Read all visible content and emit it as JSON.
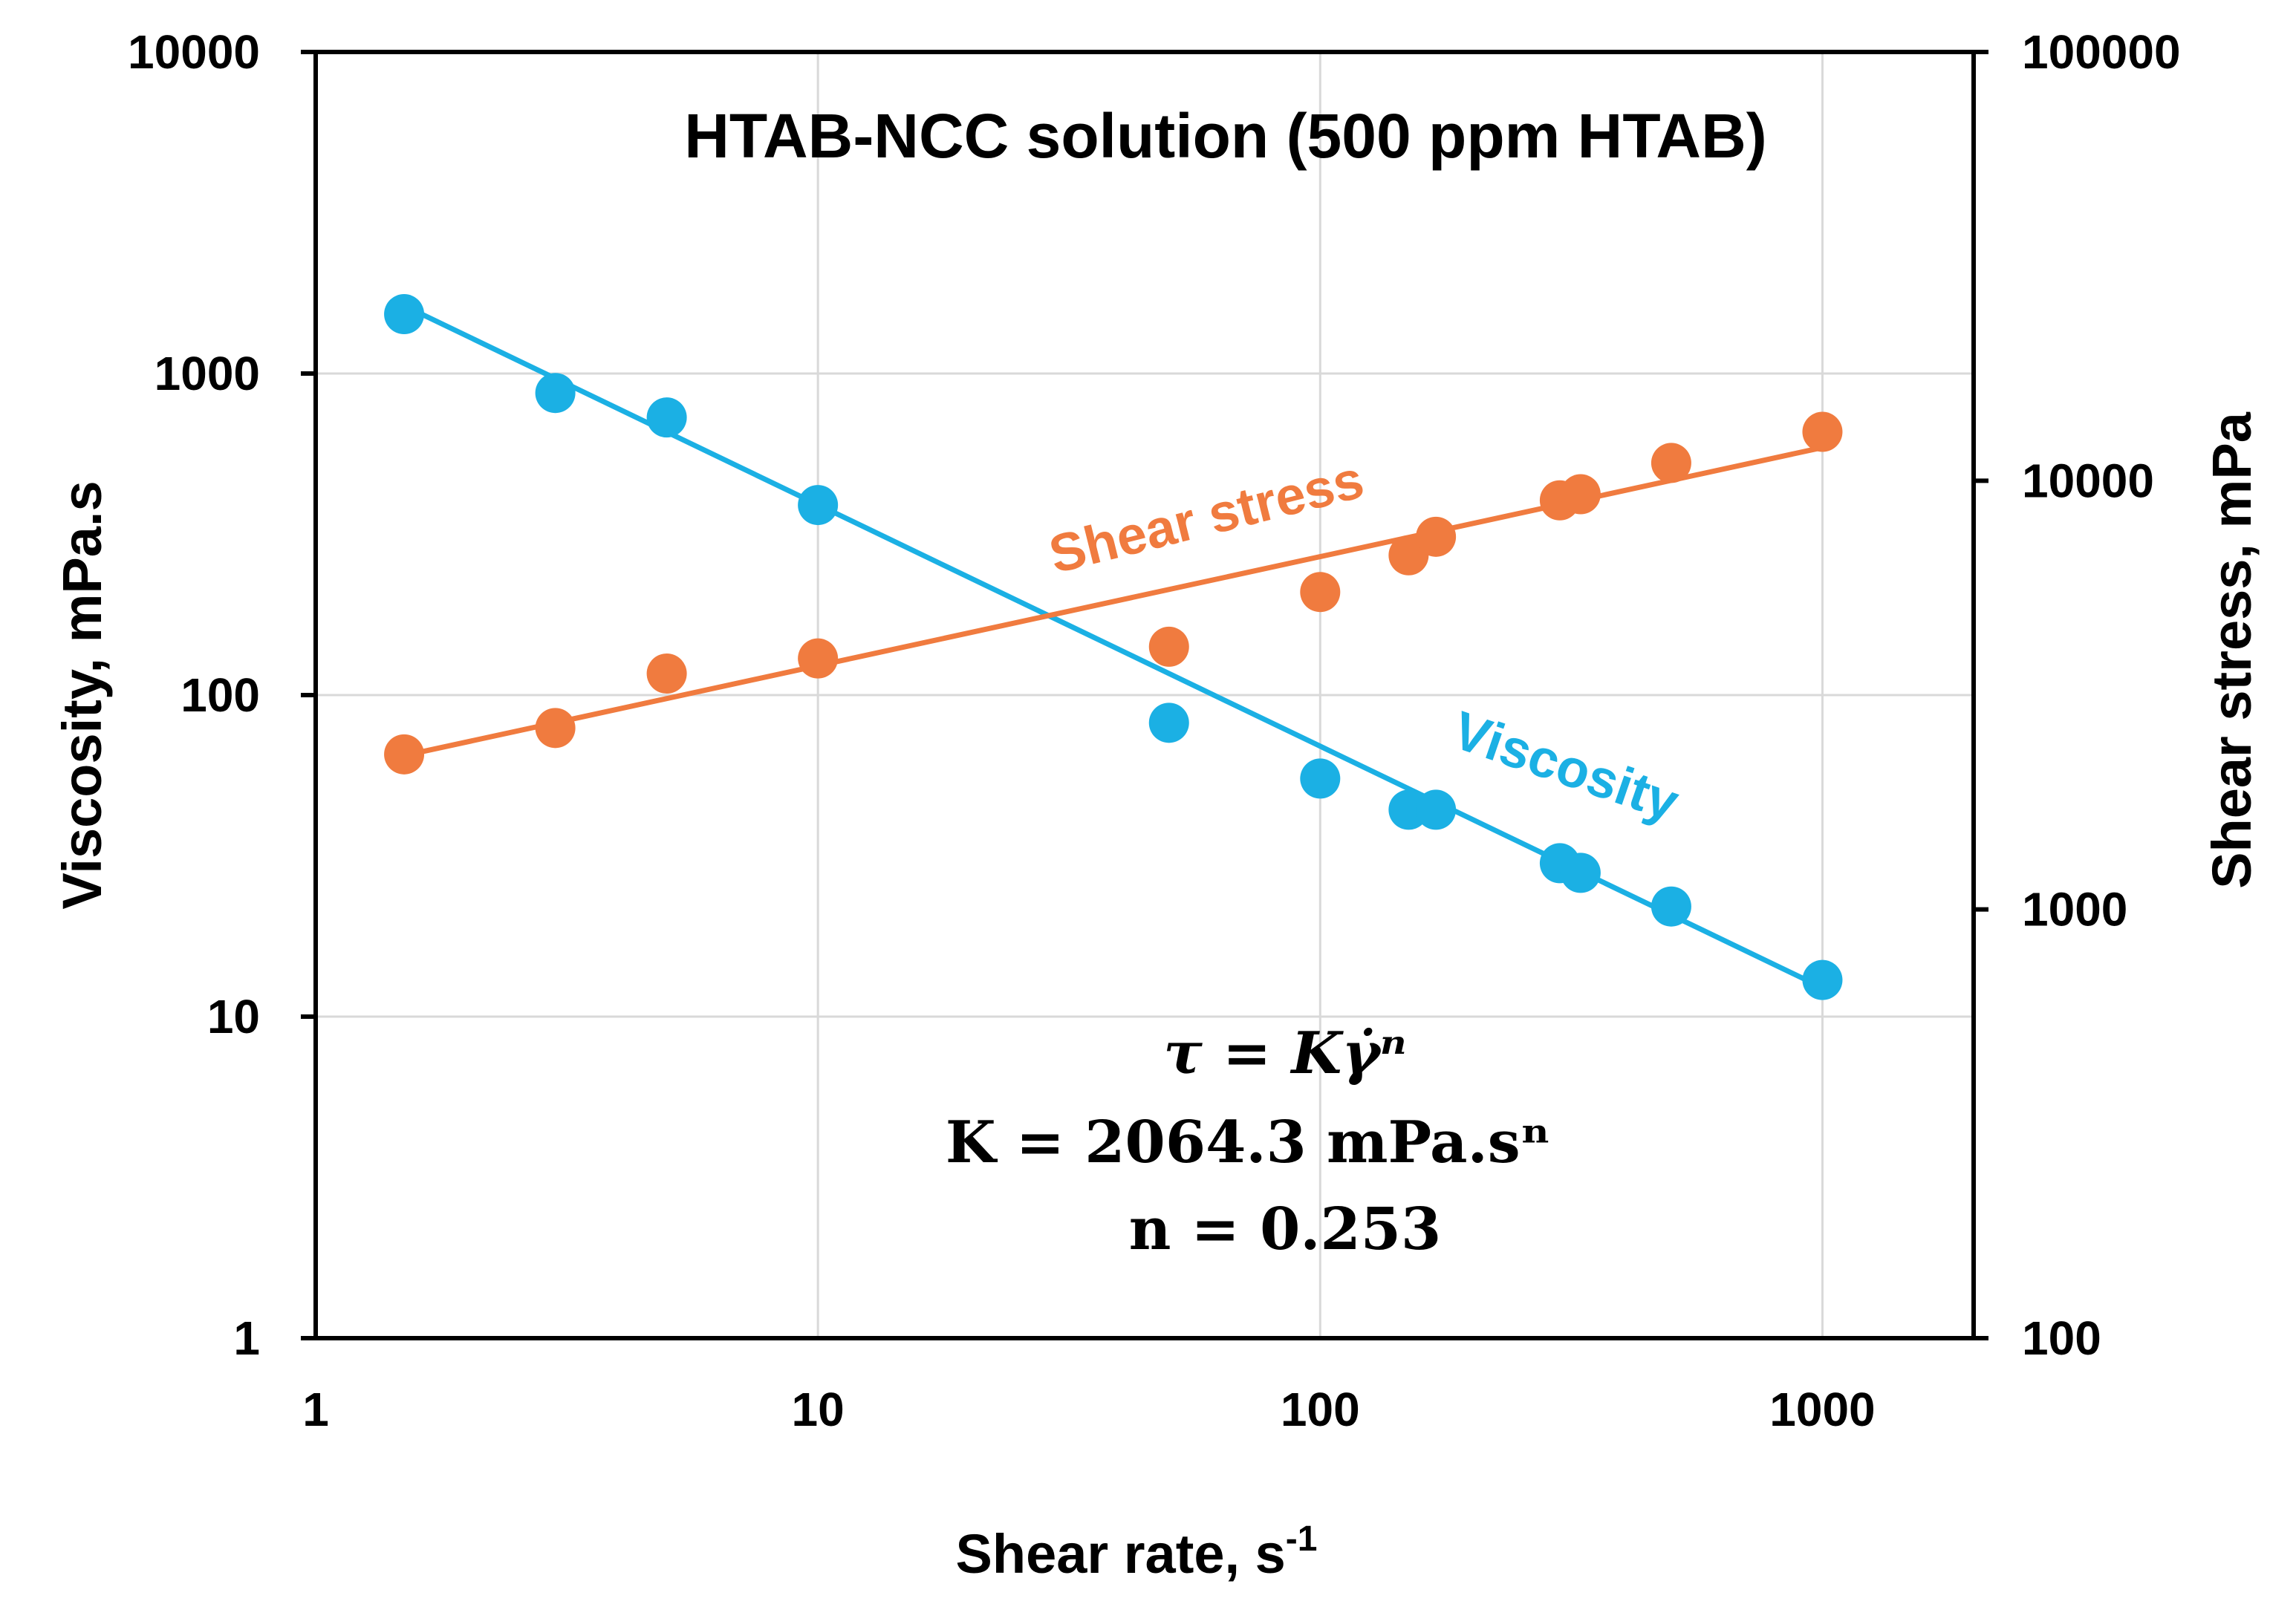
{
  "chart_data": {
    "type": "scatter",
    "title": "HTAB-NCC solution (500 ppm HTAB)",
    "xlabel": "Shear rate, s",
    "xlabel_superscript": "-1",
    "ylabel": "Viscosity, mPa.s",
    "y2label": "Shear stress, mPa",
    "xscale": "log",
    "yscale": "log",
    "xlim": [
      1,
      2000
    ],
    "ylim": [
      1,
      10000
    ],
    "y2lim": [
      100,
      100000
    ],
    "grid": true,
    "x_ticks": [
      {
        "value": 1,
        "label": "1"
      },
      {
        "value": 10,
        "label": "10"
      },
      {
        "value": 100,
        "label": "100"
      },
      {
        "value": 1000,
        "label": "1000"
      }
    ],
    "y_ticks": [
      {
        "value": 1,
        "label": "1"
      },
      {
        "value": 10,
        "label": "10"
      },
      {
        "value": 100,
        "label": "100"
      },
      {
        "value": 1000,
        "label": "1000"
      },
      {
        "value": 10000,
        "label": "10000"
      }
    ],
    "y2_ticks": [
      {
        "value": 100,
        "label": "100"
      },
      {
        "value": 1000,
        "label": "1000"
      },
      {
        "value": 10000,
        "label": "10000"
      },
      {
        "value": 100000,
        "label": "100000"
      }
    ],
    "series": [
      {
        "name": "Viscosity",
        "label": "Viscosity",
        "axis": "left",
        "color": "#1BB0E4",
        "x": [
          1.5,
          3,
          5,
          10,
          50,
          100,
          150,
          170,
          300,
          330,
          500,
          1000
        ],
        "y": [
          1530,
          870,
          730,
          390,
          82,
          55,
          44,
          44,
          30,
          28,
          22,
          13
        ],
        "fit": {
          "x": [
            1.5,
            1000
          ],
          "y": [
            1625,
            12.3
          ]
        }
      },
      {
        "name": "Shear stress",
        "label": "Shear stress",
        "axis": "right",
        "color": "#F07B3F",
        "x": [
          1.5,
          3,
          5,
          10,
          50,
          100,
          150,
          170,
          300,
          330,
          500,
          1000
        ],
        "y": [
          2300,
          2650,
          3550,
          3850,
          4100,
          5500,
          6700,
          7400,
          9000,
          9300,
          11000,
          13000
        ],
        "fit": {
          "x": [
            1.5,
            1000
          ],
          "y": [
            2285,
            11950
          ]
        }
      }
    ],
    "annotations": {
      "equation": "τ = Kγ̇ⁿ",
      "k_value": "K = 2064.3 mPa.sⁿ",
      "n_value": "n = 0.253"
    }
  }
}
